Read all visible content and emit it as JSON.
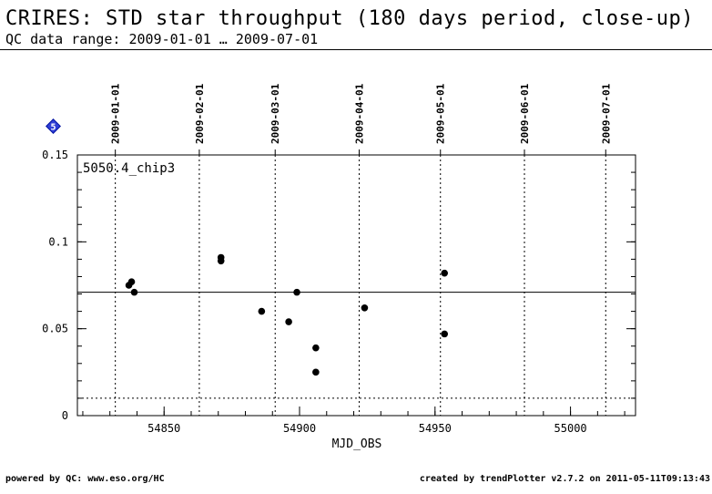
{
  "header": {
    "title": "CRIRES: STD star throughput (180 days period, close-up)",
    "subtitle": "QC data range: 2009-01-01 … 2009-07-01"
  },
  "footer": {
    "left": "powered by QC: www.eso.org/HC",
    "right": "created by trendPlotter v2.7.2 on 2011-05-11T09:13:43"
  },
  "marker_badge": "5",
  "chart_data": {
    "type": "scatter",
    "panel_label": "5050.4_chip3",
    "xlabel": "MJD_OBS",
    "ylabel": "",
    "xlim": [
      54818,
      55024
    ],
    "ylim": [
      0,
      0.15
    ],
    "x_ticks": [
      54850,
      54900,
      54950,
      55000
    ],
    "y_ticks": [
      0,
      0.05,
      0.1,
      0.15
    ],
    "y_tick_labels": [
      "0",
      "0.05",
      "0.1",
      "0.15"
    ],
    "date_markers": [
      {
        "label": "2009-01-01",
        "mjd": 54832
      },
      {
        "label": "2009-02-01",
        "mjd": 54863
      },
      {
        "label": "2009-03-01",
        "mjd": 54891
      },
      {
        "label": "2009-04-01",
        "mjd": 54922
      },
      {
        "label": "2009-05-01",
        "mjd": 54952
      },
      {
        "label": "2009-06-01",
        "mjd": 54983
      },
      {
        "label": "2009-07-01",
        "mjd": 55013
      }
    ],
    "reference_lines": [
      {
        "y": 0.071,
        "style": "solid"
      },
      {
        "y": 0.01,
        "style": "dotted"
      }
    ],
    "points": [
      {
        "x": 54837.0,
        "y": 0.075
      },
      {
        "x": 54838.0,
        "y": 0.077
      },
      {
        "x": 54839.0,
        "y": 0.071
      },
      {
        "x": 54871.0,
        "y": 0.091
      },
      {
        "x": 54871.0,
        "y": 0.089
      },
      {
        "x": 54886.0,
        "y": 0.06
      },
      {
        "x": 54896.0,
        "y": 0.054
      },
      {
        "x": 54899.0,
        "y": 0.071
      },
      {
        "x": 54906.0,
        "y": 0.039
      },
      {
        "x": 54906.0,
        "y": 0.025
      },
      {
        "x": 54924.0,
        "y": 0.062
      },
      {
        "x": 54953.5,
        "y": 0.082
      },
      {
        "x": 54953.5,
        "y": 0.047
      }
    ],
    "grid": false
  }
}
